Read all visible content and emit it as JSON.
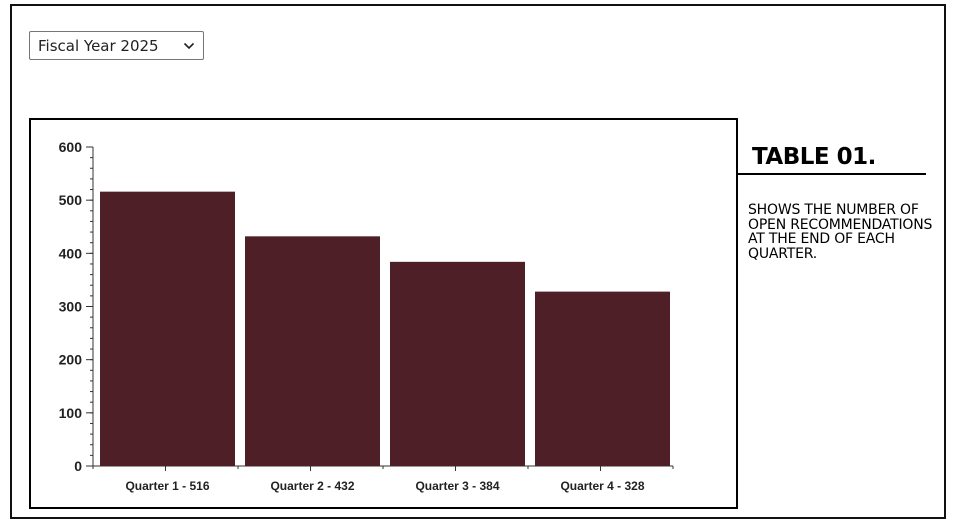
{
  "filter": {
    "selected": "Fiscal Year 2025"
  },
  "side_panel": {
    "title": "TABLE 01.",
    "description": "SHOWS THE NUMBER OF OPEN RECOMMENDATIONS AT THE END OF EACH QUARTER."
  },
  "colors": {
    "bar": "#4f1f27",
    "axis": "#333333"
  },
  "chart_data": {
    "type": "bar",
    "categories": [
      "Quarter 1 - 516",
      "Quarter 2 - 432",
      "Quarter 3 - 384",
      "Quarter 4 - 328"
    ],
    "values": [
      516,
      432,
      384,
      328
    ],
    "ylim": [
      0,
      600
    ],
    "yticks": [
      "0",
      "100",
      "200",
      "300",
      "400",
      "500",
      "600"
    ],
    "grid": false,
    "title": "",
    "xlabel": "",
    "ylabel": ""
  }
}
